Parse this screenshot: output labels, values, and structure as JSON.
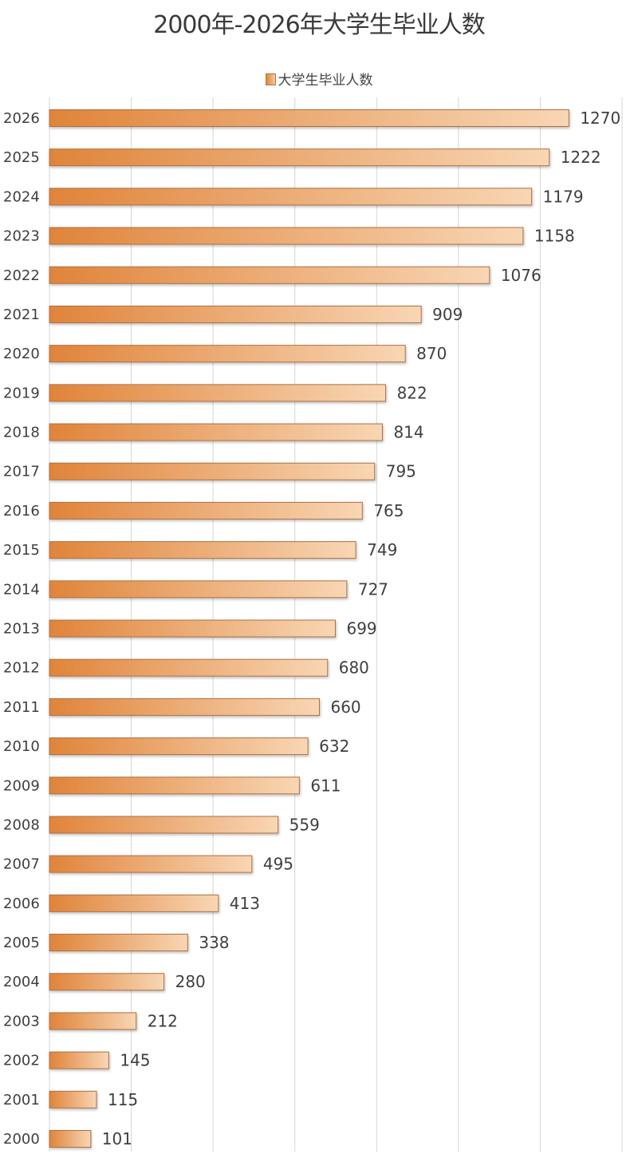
{
  "chart_data": {
    "type": "bar",
    "orientation": "horizontal",
    "title": "2000年-2026年大学生毕业人数",
    "xlabel": "",
    "ylabel": "",
    "legend": {
      "position": "top",
      "entries": [
        "大学生毕业人数"
      ]
    },
    "xlim": [
      0,
      1400
    ],
    "x_grid_step": 200,
    "grid": true,
    "x_tick_labels_shown": false,
    "categories": [
      "2026",
      "2025",
      "2024",
      "2023",
      "2022",
      "2021",
      "2020",
      "2019",
      "2018",
      "2017",
      "2016",
      "2015",
      "2014",
      "2013",
      "2012",
      "2011",
      "2010",
      "2009",
      "2008",
      "2007",
      "2006",
      "2005",
      "2004",
      "2003",
      "2002",
      "2001",
      "2000"
    ],
    "series": [
      {
        "name": "大学生毕业人数",
        "values": [
          1270,
          1222,
          1179,
          1158,
          1076,
          909,
          870,
          822,
          814,
          795,
          765,
          749,
          727,
          699,
          680,
          660,
          632,
          611,
          559,
          495,
          413,
          338,
          280,
          212,
          145,
          115,
          101
        ],
        "color_start": "#e0843a",
        "color_end": "#f8d6b4",
        "border_color": "#b07040"
      }
    ]
  }
}
